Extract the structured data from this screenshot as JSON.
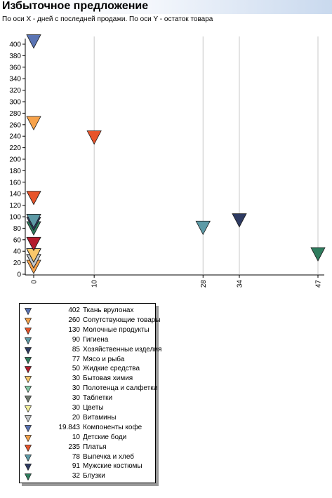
{
  "header": {
    "title": "Избыточное предложение",
    "subtitle": "По оси X - дней с последней продажи. По оси Y - остаток товара"
  },
  "chart_data": {
    "type": "scatter",
    "title": "Избыточное предложение",
    "subtitle": "По оси X - дней с последней продажи. По оси Y - остаток товара",
    "xlabel": "",
    "ylabel": "",
    "ylim": [
      0,
      410
    ],
    "xlim": [
      0,
      47
    ],
    "y_ticks": [
      0,
      20,
      40,
      60,
      80,
      100,
      120,
      140,
      160,
      180,
      200,
      220,
      240,
      260,
      280,
      300,
      320,
      340,
      360,
      380,
      400
    ],
    "x_ticks": [
      0,
      10,
      28,
      34,
      47
    ],
    "grid": "vertical lines at x ticks",
    "legend": "bottom-left",
    "marker": "downward-triangle",
    "series": [
      {
        "name": "Ткань врулонах",
        "label": "402",
        "x": 0,
        "y": 402,
        "color": "#5a74b4"
      },
      {
        "name": "Сопутствующие товары",
        "label": "260",
        "x": 0,
        "y": 260,
        "color": "#f7a24a"
      },
      {
        "name": "Молочные продукты",
        "label": "130",
        "x": 0,
        "y": 130,
        "color": "#e8542a"
      },
      {
        "name": "Гигиена",
        "label": "90",
        "x": 0,
        "y": 90,
        "color": "#5d9aa6"
      },
      {
        "name": "Хозяйственные изделия",
        "label": "85",
        "x": 0,
        "y": 85,
        "color": "#2e3b62"
      },
      {
        "name": "Мясо и рыба",
        "label": "77",
        "x": 0,
        "y": 77,
        "color": "#2f7d5e"
      },
      {
        "name": "Жидкие средства",
        "label": "50",
        "x": 0,
        "y": 50,
        "color": "#b51c2c"
      },
      {
        "name": "Бытовая химия",
        "label": "30",
        "x": 0,
        "y": 30,
        "color": "#f9c76a"
      },
      {
        "name": "Полотенца и салфетки",
        "label": "30",
        "x": 0,
        "y": 30,
        "color": "#84c9a6"
      },
      {
        "name": "Таблетки",
        "label": "30",
        "x": 0,
        "y": 30,
        "color": "#6f7a70"
      },
      {
        "name": "Цветы",
        "label": "30",
        "x": 0,
        "y": 30,
        "color": "#f3f09a"
      },
      {
        "name": "Витамины",
        "label": "20",
        "x": 0,
        "y": 20,
        "color": "#c3c7cb"
      },
      {
        "name": "Компоненты кофе",
        "label": "19.843",
        "x": 0,
        "y": 19.843,
        "color": "#5a74b4"
      },
      {
        "name": "Детские боди",
        "label": "10",
        "x": 0,
        "y": 10,
        "color": "#f7a24a"
      },
      {
        "name": "Платья",
        "label": "235",
        "x": 10,
        "y": 235,
        "color": "#e8542a"
      },
      {
        "name": "Выпечка и хлеб",
        "label": "78",
        "x": 28,
        "y": 78,
        "color": "#5d9aa6"
      },
      {
        "name": "Мужские костюмы",
        "label": "91",
        "x": 34,
        "y": 91,
        "color": "#2e3b62"
      },
      {
        "name": "Блузки",
        "label": "32",
        "x": 47,
        "y": 32,
        "color": "#2f7d5e"
      }
    ]
  }
}
